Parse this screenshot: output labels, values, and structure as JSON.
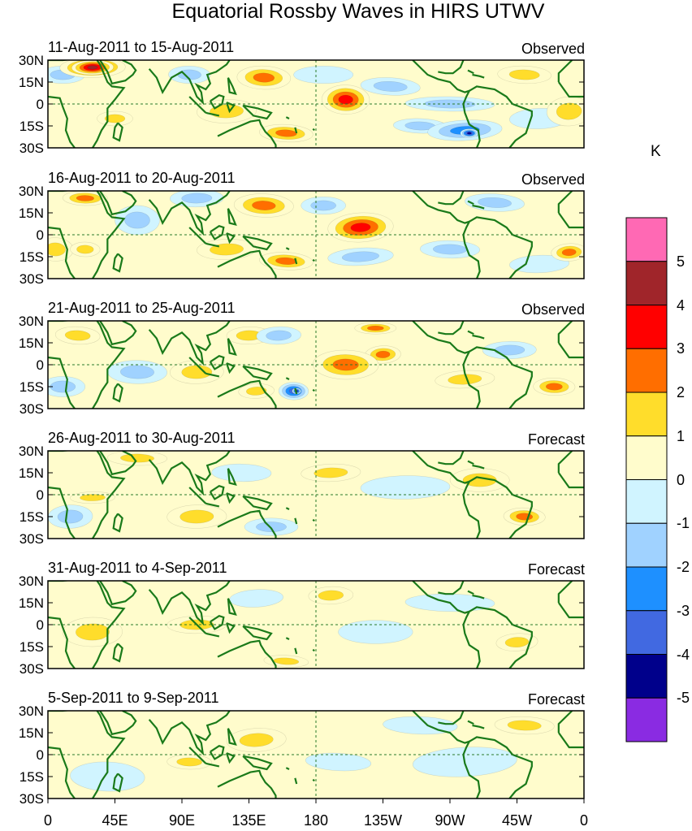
{
  "title": "Equatorial Rossby Waves in HIRS UTWV",
  "colorbar": {
    "unit": "K",
    "levels": [
      "5",
      "4",
      "3",
      "2",
      "1",
      "0",
      "-1",
      "-2",
      "-3",
      "-4",
      "-5"
    ],
    "colors": [
      "#ff69b4",
      "#a0252a",
      "#ff0000",
      "#ff6e00",
      "#ffdd2b",
      "#fffccc",
      "#d0f4ff",
      "#a0d2ff",
      "#1e90ff",
      "#4169e1",
      "#00008b",
      "#8a2be2"
    ]
  },
  "lat_labels": [
    "30N",
    "15N",
    "0",
    "15S",
    "30S"
  ],
  "lon_labels": [
    "0",
    "45E",
    "90E",
    "135E",
    "180",
    "135W",
    "90W",
    "45W",
    "0"
  ],
  "panels": [
    {
      "dates": "11-Aug-2011 to 15-Aug-2011",
      "label": "Observed",
      "anomalies": [
        [
          30,
          25,
          14,
          5,
          5.2
        ],
        [
          30,
          25,
          22,
          7,
          3.5
        ],
        [
          145,
          18,
          18,
          8,
          2.6
        ],
        [
          200,
          3,
          16,
          10,
          3.5
        ],
        [
          160,
          -20,
          18,
          6,
          2.5
        ],
        [
          45,
          -10,
          12,
          5,
          2.2
        ],
        [
          95,
          20,
          14,
          6,
          -1.6
        ],
        [
          230,
          12,
          20,
          6,
          -1.6
        ],
        [
          270,
          0,
          30,
          5,
          -2.2
        ],
        [
          280,
          -18,
          25,
          7,
          -3.2
        ],
        [
          283,
          -20,
          6,
          3,
          -4.5
        ],
        [
          250,
          -15,
          18,
          5,
          -1.5
        ],
        [
          320,
          20,
          18,
          6,
          1.5
        ],
        [
          120,
          -5,
          20,
          8,
          1.5
        ],
        [
          350,
          -5,
          15,
          10,
          1.5
        ],
        [
          330,
          -10,
          20,
          7,
          -0.5
        ],
        [
          10,
          20,
          15,
          6,
          -1.5
        ],
        [
          185,
          20,
          20,
          6,
          -0.5
        ]
      ]
    },
    {
      "dates": "16-Aug-2011 to 20-Aug-2011",
      "label": "Observed",
      "anomalies": [
        [
          25,
          25,
          15,
          5,
          2.6
        ],
        [
          145,
          20,
          20,
          8,
          3.2
        ],
        [
          210,
          5,
          22,
          10,
          3.5
        ],
        [
          160,
          -18,
          18,
          6,
          2.6
        ],
        [
          25,
          -10,
          10,
          5,
          2.2
        ],
        [
          350,
          -12,
          12,
          6,
          2.6
        ],
        [
          100,
          25,
          18,
          6,
          -2.2
        ],
        [
          210,
          -15,
          22,
          6,
          -1.6
        ],
        [
          300,
          22,
          20,
          6,
          -2.2
        ],
        [
          270,
          -10,
          20,
          6,
          -1.6
        ],
        [
          60,
          10,
          15,
          10,
          -1.5
        ],
        [
          120,
          -10,
          20,
          7,
          1.5
        ],
        [
          5,
          -10,
          12,
          8,
          1.5
        ],
        [
          185,
          20,
          15,
          6,
          -1.5
        ],
        [
          330,
          -20,
          20,
          6,
          -0.5
        ]
      ]
    },
    {
      "dates": "21-Aug-2011 to 25-Aug-2011",
      "label": "Observed",
      "anomalies": [
        [
          135,
          20,
          15,
          6,
          2.3
        ],
        [
          155,
          20,
          15,
          6,
          -2.3
        ],
        [
          200,
          0,
          22,
          10,
          3.3
        ],
        [
          225,
          7,
          12,
          6,
          2.6
        ],
        [
          165,
          -18,
          10,
          6,
          -3.5
        ],
        [
          167,
          -18,
          3,
          2,
          -4.6
        ],
        [
          140,
          -18,
          12,
          5,
          2.4
        ],
        [
          10,
          -15,
          15,
          7,
          -2.2
        ],
        [
          340,
          -15,
          14,
          6,
          2.8
        ],
        [
          310,
          10,
          18,
          6,
          -1.6
        ],
        [
          60,
          -5,
          20,
          8,
          -1.5
        ],
        [
          100,
          -5,
          18,
          8,
          1.5
        ],
        [
          220,
          25,
          14,
          4,
          2.5
        ],
        [
          280,
          -10,
          20,
          6,
          1.5
        ],
        [
          20,
          20,
          15,
          6,
          1.5
        ]
      ]
    },
    {
      "dates": "26-Aug-2011 to 30-Aug-2011",
      "label": "Forecast",
      "anomalies": [
        [
          190,
          15,
          20,
          6,
          1.5
        ],
        [
          30,
          -2,
          15,
          4,
          2.3
        ],
        [
          320,
          -15,
          14,
          6,
          2.5
        ],
        [
          150,
          -22,
          18,
          6,
          -1.8
        ],
        [
          15,
          -15,
          15,
          8,
          -1.5
        ],
        [
          100,
          -15,
          20,
          8,
          1.5
        ],
        [
          240,
          5,
          30,
          8,
          -0.5
        ],
        [
          130,
          15,
          20,
          6,
          -0.5
        ],
        [
          290,
          10,
          20,
          8,
          1.5
        ],
        [
          60,
          25,
          20,
          5,
          1.5
        ]
      ]
    },
    {
      "dates": "31-Aug-2011 to 4-Sep-2011",
      "label": "Forecast",
      "anomalies": [
        [
          315,
          -12,
          14,
          6,
          1.5
        ],
        [
          140,
          18,
          18,
          6,
          -0.7
        ],
        [
          100,
          0,
          20,
          6,
          1.5
        ],
        [
          220,
          -5,
          25,
          8,
          -0.5
        ],
        [
          30,
          -5,
          20,
          10,
          1.5
        ],
        [
          190,
          20,
          15,
          6,
          1.5
        ],
        [
          270,
          15,
          30,
          6,
          -0.5
        ],
        [
          160,
          -25,
          15,
          4,
          1.5
        ]
      ]
    },
    {
      "dates": "5-Sep-2011 to 9-Sep-2011",
      "label": "Forecast",
      "anomalies": [
        [
          95,
          -5,
          15,
          5,
          1.5
        ],
        [
          195,
          -5,
          22,
          6,
          -1.3
        ],
        [
          40,
          -15,
          25,
          10,
          -0.5
        ],
        [
          280,
          -5,
          35,
          10,
          -0.5
        ],
        [
          140,
          10,
          20,
          8,
          1.5
        ],
        [
          320,
          20,
          20,
          6,
          1.5
        ],
        [
          250,
          20,
          25,
          6,
          -0.5
        ]
      ]
    }
  ]
}
